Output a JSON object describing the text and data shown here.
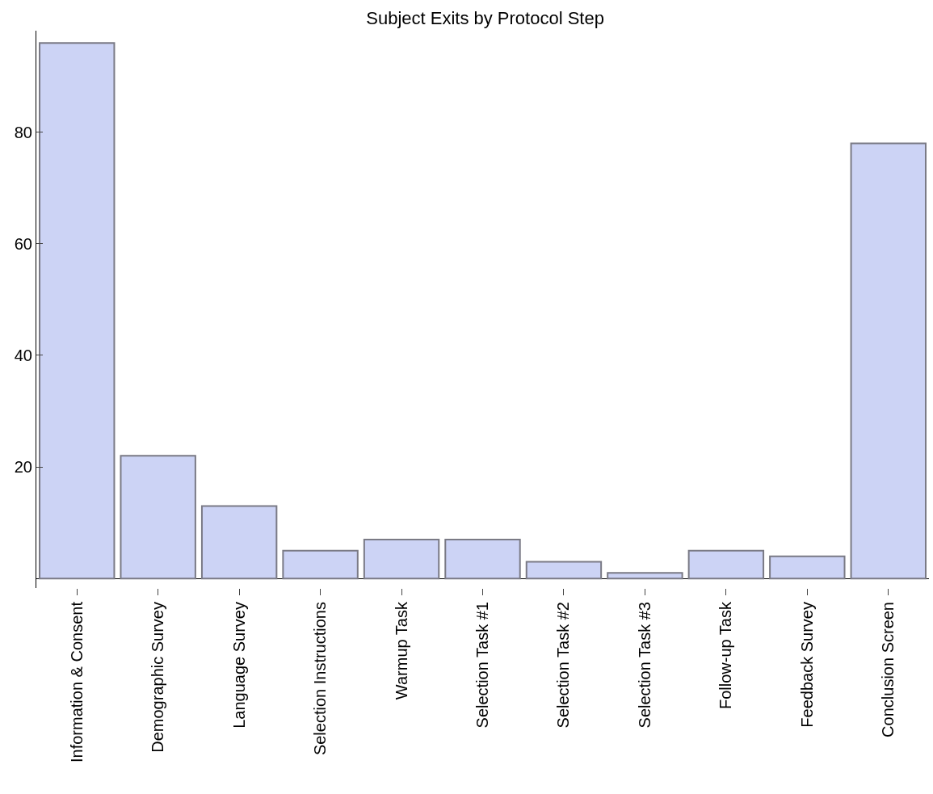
{
  "chart_data": {
    "type": "bar",
    "title": "Subject Exits by Protocol Step",
    "categories": [
      "Information & Consent",
      "Demographic Survey",
      "Language Survey",
      "Selection Instructions",
      "Warmup Task",
      "Selection Task #1",
      "Selection Task #2",
      "Selection Task #3",
      "Follow-up Task",
      "Feedback Survey",
      "Conclusion Screen"
    ],
    "values": [
      96,
      22,
      13,
      5,
      7,
      7,
      3,
      1,
      5,
      4,
      78
    ],
    "color": "#ccd3f5",
    "ylim": [
      -1.7,
      98.2
    ],
    "yticks": [
      20,
      40,
      60,
      80
    ]
  }
}
